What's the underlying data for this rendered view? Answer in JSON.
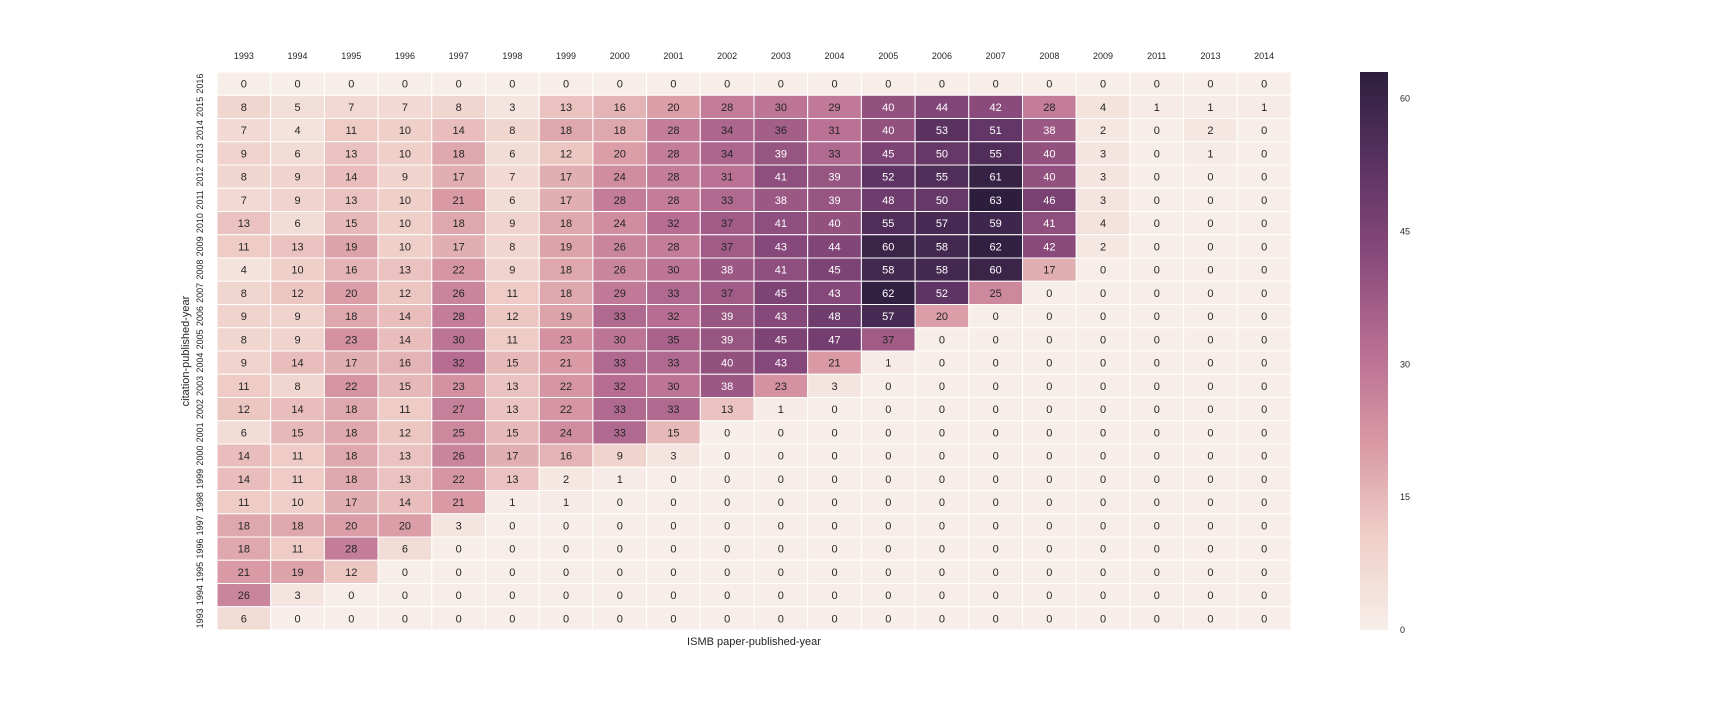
{
  "chart_data": {
    "type": "heatmap",
    "xlabel": "ISMB paper-published-year",
    "ylabel": "citation-published-year",
    "x_categories": [
      "1993",
      "1994",
      "1995",
      "1996",
      "1997",
      "1998",
      "1999",
      "2000",
      "2001",
      "2002",
      "2003",
      "2004",
      "2005",
      "2006",
      "2007",
      "2008",
      "2009",
      "2011",
      "2013",
      "2014"
    ],
    "y_categories": [
      "2016",
      "2015",
      "2014",
      "2013",
      "2012",
      "2011",
      "2010",
      "2009",
      "2008",
      "2007",
      "2006",
      "2005",
      "2004",
      "2003",
      "2002",
      "2001",
      "2000",
      "1999",
      "1998",
      "1997",
      "1996",
      "1995",
      "1994",
      "1993"
    ],
    "values": [
      [
        0,
        0,
        0,
        0,
        0,
        0,
        0,
        0,
        0,
        0,
        0,
        0,
        0,
        0,
        0,
        0,
        0,
        0,
        0,
        0
      ],
      [
        8,
        5,
        7,
        7,
        8,
        3,
        13,
        16,
        20,
        28,
        30,
        29,
        40,
        44,
        42,
        28,
        4,
        1,
        1,
        1
      ],
      [
        7,
        4,
        11,
        10,
        14,
        8,
        18,
        18,
        28,
        34,
        36,
        31,
        40,
        53,
        51,
        38,
        2,
        0,
        2,
        0
      ],
      [
        9,
        6,
        13,
        10,
        18,
        6,
        12,
        20,
        28,
        34,
        39,
        33,
        45,
        50,
        55,
        40,
        3,
        0,
        1,
        0
      ],
      [
        8,
        9,
        14,
        9,
        17,
        7,
        17,
        24,
        28,
        31,
        41,
        39,
        52,
        55,
        61,
        40,
        3,
        0,
        0,
        0
      ],
      [
        7,
        9,
        13,
        10,
        21,
        6,
        17,
        28,
        28,
        33,
        38,
        39,
        48,
        50,
        63,
        46,
        3,
        0,
        0,
        0
      ],
      [
        13,
        6,
        15,
        10,
        18,
        9,
        18,
        24,
        32,
        37,
        41,
        40,
        55,
        57,
        59,
        41,
        4,
        0,
        0,
        0
      ],
      [
        11,
        13,
        19,
        10,
        17,
        8,
        19,
        26,
        28,
        37,
        43,
        44,
        60,
        58,
        62,
        42,
        2,
        0,
        0,
        0
      ],
      [
        4,
        10,
        16,
        13,
        22,
        9,
        18,
        26,
        30,
        38,
        41,
        45,
        58,
        58,
        60,
        17,
        0,
        0,
        0,
        0
      ],
      [
        8,
        12,
        20,
        12,
        26,
        11,
        18,
        29,
        33,
        37,
        45,
        43,
        62,
        52,
        25,
        0,
        0,
        0,
        0,
        0
      ],
      [
        9,
        9,
        18,
        14,
        28,
        12,
        19,
        33,
        32,
        39,
        43,
        48,
        57,
        20,
        0,
        0,
        0,
        0,
        0,
        0
      ],
      [
        8,
        9,
        23,
        14,
        30,
        11,
        23,
        30,
        35,
        39,
        45,
        47,
        37,
        0,
        0,
        0,
        0,
        0,
        0,
        0
      ],
      [
        9,
        14,
        17,
        16,
        32,
        15,
        21,
        33,
        33,
        40,
        43,
        21,
        1,
        0,
        0,
        0,
        0,
        0,
        0,
        0
      ],
      [
        11,
        8,
        22,
        15,
        23,
        13,
        22,
        32,
        30,
        38,
        23,
        3,
        0,
        0,
        0,
        0,
        0,
        0,
        0,
        0
      ],
      [
        12,
        14,
        18,
        11,
        27,
        13,
        22,
        33,
        33,
        13,
        1,
        0,
        0,
        0,
        0,
        0,
        0,
        0,
        0,
        0
      ],
      [
        6,
        15,
        18,
        12,
        25,
        15,
        24,
        33,
        15,
        0,
        0,
        0,
        0,
        0,
        0,
        0,
        0,
        0,
        0,
        0
      ],
      [
        14,
        11,
        18,
        13,
        26,
        17,
        16,
        9,
        3,
        0,
        0,
        0,
        0,
        0,
        0,
        0,
        0,
        0,
        0,
        0
      ],
      [
        14,
        11,
        18,
        13,
        22,
        13,
        2,
        1,
        0,
        0,
        0,
        0,
        0,
        0,
        0,
        0,
        0,
        0,
        0,
        0
      ],
      [
        11,
        10,
        17,
        14,
        21,
        1,
        1,
        0,
        0,
        0,
        0,
        0,
        0,
        0,
        0,
        0,
        0,
        0,
        0,
        0
      ],
      [
        18,
        18,
        20,
        20,
        3,
        0,
        0,
        0,
        0,
        0,
        0,
        0,
        0,
        0,
        0,
        0,
        0,
        0,
        0,
        0
      ],
      [
        18,
        11,
        28,
        6,
        0,
        0,
        0,
        0,
        0,
        0,
        0,
        0,
        0,
        0,
        0,
        0,
        0,
        0,
        0,
        0
      ],
      [
        21,
        19,
        12,
        0,
        0,
        0,
        0,
        0,
        0,
        0,
        0,
        0,
        0,
        0,
        0,
        0,
        0,
        0,
        0,
        0
      ],
      [
        26,
        3,
        0,
        0,
        0,
        0,
        0,
        0,
        0,
        0,
        0,
        0,
        0,
        0,
        0,
        0,
        0,
        0,
        0,
        0
      ],
      [
        6,
        0,
        0,
        0,
        0,
        0,
        0,
        0,
        0,
        0,
        0,
        0,
        0,
        0,
        0,
        0,
        0,
        0,
        0,
        0
      ]
    ],
    "vmin": 0,
    "vmax": 63,
    "colorbar_ticks": [
      0,
      15,
      30,
      45,
      60
    ],
    "color_scale": [
      "#f7eeea",
      "#efcfc7",
      "#d999a5",
      "#b86f92",
      "#8a4a7c",
      "#5b3362",
      "#2d1e3e"
    ],
    "light_text_threshold": 38,
    "text_colors": {
      "dark": "#262626",
      "light": "#ffffff"
    },
    "grid": false
  }
}
